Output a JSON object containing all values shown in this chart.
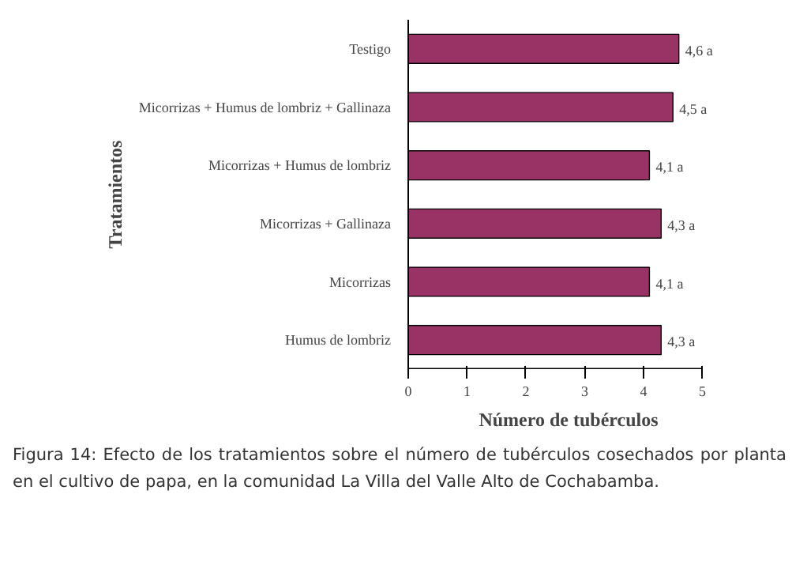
{
  "chart_data": {
    "type": "bar",
    "orientation": "horizontal",
    "xlabel": "Número de tubérculos",
    "ylabel": "Tratamientos",
    "categories": [
      "Testigo",
      "Micorrizas + Humus de lombriz + Gallinaza",
      "Micorrizas + Humus de lombriz",
      "Micorrizas + Gallinaza",
      "Micorrizas",
      "Humus de lombriz"
    ],
    "values": [
      4.6,
      4.5,
      4.1,
      4.3,
      4.1,
      4.3
    ],
    "value_labels": [
      "4,6 a",
      "4,5 a",
      "4,1 a",
      "4,3 a",
      "4,1 a",
      "4,3 a"
    ],
    "color": "#993366",
    "xlim": [
      0,
      5
    ],
    "xticks": [
      0,
      1,
      2,
      3,
      4,
      5
    ],
    "grid": false,
    "annotations": [
      "Figura 14: Efecto de los tratamientos sobre el número de tubérculos cosechados por planta en el cultivo de papa, en la comunidad La Villa del Valle Alto de Cochabamba."
    ]
  }
}
